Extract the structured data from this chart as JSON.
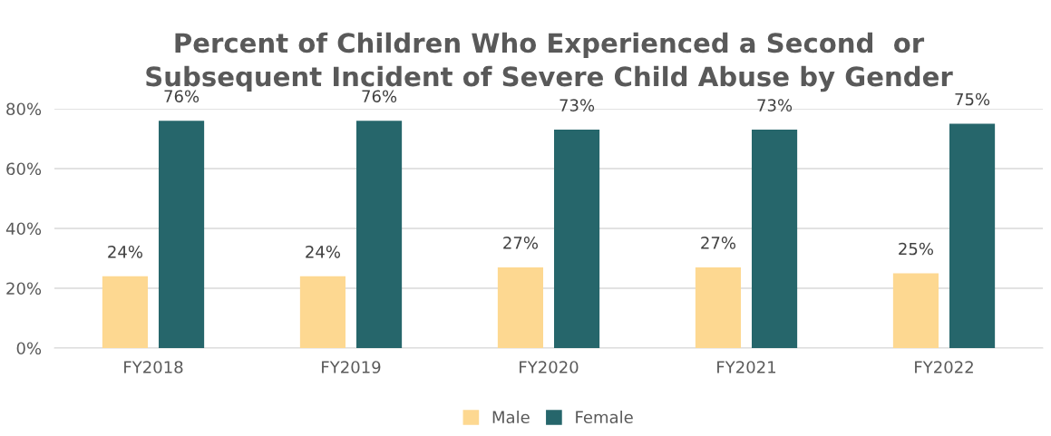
{
  "chart_data": {
    "type": "bar",
    "title": "Percent of Children Who Experienced a Second  or\nSubsequent Incident of Severe Child Abuse by Gender",
    "categories": [
      "FY2018",
      "FY2019",
      "FY2020",
      "FY2021",
      "FY2022"
    ],
    "series": [
      {
        "name": "Male",
        "color": "#fdd891",
        "values": [
          24,
          24,
          27,
          27,
          25
        ],
        "value_labels": [
          "24%",
          "24%",
          "27%",
          "27%",
          "25%"
        ]
      },
      {
        "name": "Female",
        "color": "#26666b",
        "values": [
          76,
          76,
          73,
          73,
          75
        ],
        "value_labels": [
          "76%",
          "76%",
          "73%",
          "73%",
          "75%"
        ]
      }
    ],
    "ylim": [
      0,
      80
    ],
    "yticks": [
      {
        "value": 0,
        "label": "0%"
      },
      {
        "value": 20,
        "label": "20%"
      },
      {
        "value": 40,
        "label": "40%"
      },
      {
        "value": 60,
        "label": "60%"
      },
      {
        "value": 80,
        "label": "80%"
      }
    ],
    "grid": "y",
    "legend": "bottom"
  }
}
